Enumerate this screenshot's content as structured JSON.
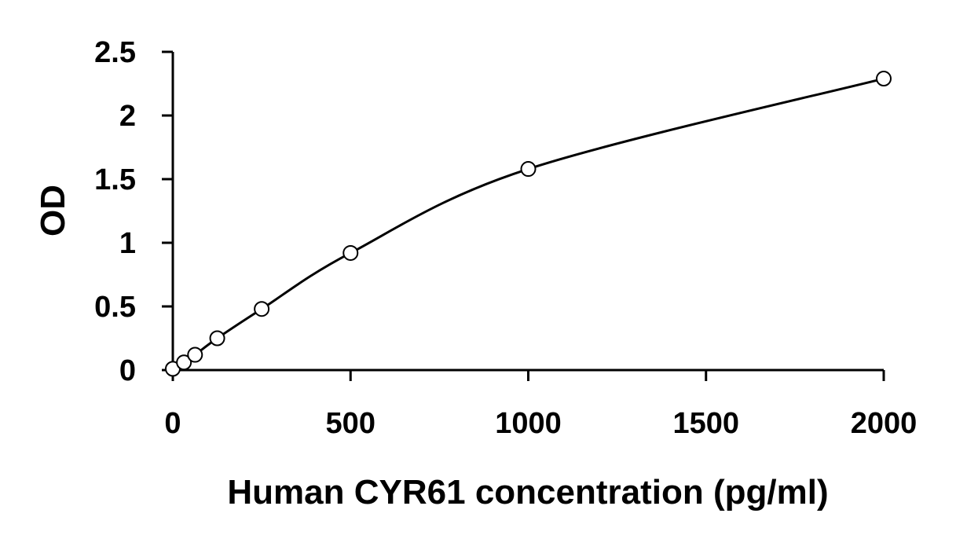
{
  "chart_data": {
    "type": "scatter",
    "title": "",
    "xlabel": "Human CYR61 concentration (pg/ml)",
    "ylabel": "OD",
    "xlim": [
      0,
      2000
    ],
    "ylim": [
      0,
      2.5
    ],
    "x_ticks": [
      0,
      500,
      1000,
      1500,
      2000
    ],
    "x_tick_labels": [
      "0",
      "500",
      "1000",
      "1500",
      "2000"
    ],
    "y_ticks": [
      0,
      0.5,
      1,
      1.5,
      2,
      2.5
    ],
    "y_tick_labels": [
      "0",
      "0.5",
      "1",
      "1.5",
      "2",
      "2.5"
    ],
    "grid": false,
    "legend": "none",
    "series": [
      {
        "marker": "open-circle",
        "fit": "smooth-curve",
        "x": [
          0,
          31.25,
          62.5,
          125,
          250,
          500,
          1000,
          2000
        ],
        "y": [
          0.01,
          0.06,
          0.12,
          0.25,
          0.48,
          0.92,
          1.58,
          2.29
        ]
      }
    ]
  }
}
